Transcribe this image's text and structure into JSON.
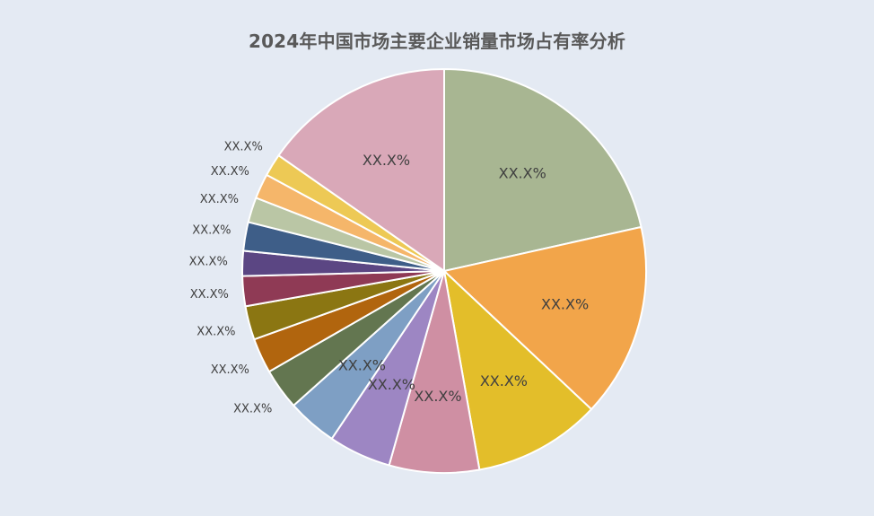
{
  "chart_data": {
    "type": "pie",
    "title": "2024年中国市场主要企业销量市场占有率分析",
    "slices": [
      {
        "value": 21.5,
        "label": "XX.X%",
        "color": "#A8B692"
      },
      {
        "value": 15.5,
        "label": "XX.X%",
        "color": "#F2A54A"
      },
      {
        "value": 10.2,
        "label": "XX.X%",
        "color": "#E3BE2A"
      },
      {
        "value": 7.2,
        "label": "XX.X%",
        "color": "#CF8FA3"
      },
      {
        "value": 5.0,
        "label": "XX.X%",
        "color": "#9D86C3"
      },
      {
        "value": 4.0,
        "label": "XX.X%",
        "color": "#7E9FC4"
      },
      {
        "value": 3.3,
        "label": "XX.X%",
        "color": "#637650"
      },
      {
        "value": 2.8,
        "label": "XX.X%",
        "color": "#B1650E"
      },
      {
        "value": 2.7,
        "label": "XX.X%",
        "color": "#8B7612"
      },
      {
        "value": 2.4,
        "label": "XX.X%",
        "color": "#8F3A55"
      },
      {
        "value": 2.0,
        "label": "XX.X%",
        "color": "#5B4683"
      },
      {
        "value": 2.3,
        "label": "XX.X%",
        "color": "#3E5E88"
      },
      {
        "value": 2.0,
        "label": "XX.X%",
        "color": "#BAC6A5"
      },
      {
        "value": 2.0,
        "label": "XX.X%",
        "color": "#F5B66A"
      },
      {
        "value": 1.8,
        "label": "XX.X%",
        "color": "#EDC955"
      },
      {
        "value": 15.3,
        "label": "XX.X%",
        "color": "#D9A8B8"
      }
    ]
  }
}
